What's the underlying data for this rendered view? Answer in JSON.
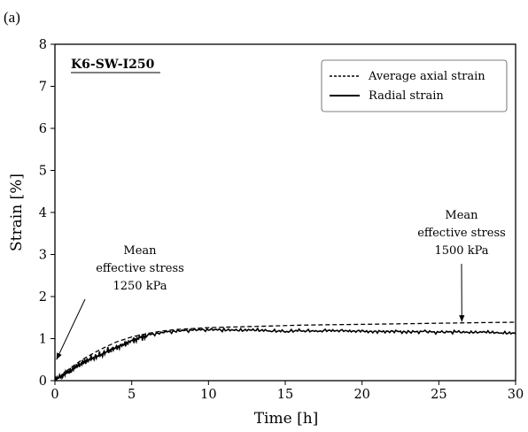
{
  "panel_label": "(a)",
  "chart_data": {
    "type": "line",
    "specimen_label": "K6-SW-I250",
    "xlabel": "Time [h]",
    "ylabel": "Strain [%]",
    "xlim": [
      0,
      30
    ],
    "ylim": [
      0,
      8
    ],
    "x_ticks": [
      0,
      5,
      10,
      15,
      20,
      25,
      30
    ],
    "y_ticks": [
      0,
      1,
      2,
      3,
      4,
      5,
      6,
      7,
      8
    ],
    "grid": false,
    "legend_position": "top-right",
    "series": [
      {
        "name": "Average axial strain",
        "style": "dashed",
        "color": "#000000",
        "x": [
          0,
          0.5,
          1,
          1.5,
          2,
          3,
          4,
          5,
          6,
          7,
          8,
          9,
          10,
          12,
          14,
          16,
          18,
          20,
          22,
          24,
          26,
          28,
          30
        ],
        "y": [
          0.0,
          0.15,
          0.3,
          0.43,
          0.55,
          0.75,
          0.92,
          1.04,
          1.12,
          1.18,
          1.22,
          1.24,
          1.26,
          1.28,
          1.3,
          1.32,
          1.33,
          1.34,
          1.35,
          1.36,
          1.37,
          1.38,
          1.39
        ]
      },
      {
        "name": "Radial strain",
        "style": "solid",
        "color": "#000000",
        "x": [
          0,
          0.5,
          1,
          1.5,
          2,
          2.5,
          3,
          3.5,
          4,
          4.5,
          5,
          5.5,
          6,
          7,
          8,
          9,
          10,
          11,
          12,
          13,
          14,
          15,
          16,
          17,
          18,
          19,
          20,
          21,
          22,
          23,
          24,
          25,
          26,
          27,
          28,
          29,
          30
        ],
        "y": [
          0.0,
          0.12,
          0.22,
          0.35,
          0.45,
          0.55,
          0.62,
          0.72,
          0.8,
          0.88,
          0.96,
          1.02,
          1.08,
          1.15,
          1.18,
          1.2,
          1.21,
          1.2,
          1.19,
          1.2,
          1.18,
          1.17,
          1.19,
          1.18,
          1.2,
          1.19,
          1.18,
          1.17,
          1.18,
          1.16,
          1.17,
          1.15,
          1.16,
          1.14,
          1.15,
          1.13,
          1.12
        ]
      }
    ],
    "annotations": [
      {
        "lines": [
          "Mean",
          "effective stress",
          "1250 kPa"
        ],
        "points_to": {
          "x": 0.1,
          "y": 0.5
        }
      },
      {
        "lines": [
          "Mean",
          "effective stress",
          "1500 kPa"
        ],
        "points_to": {
          "x": 26.5,
          "y": 1.4
        }
      }
    ]
  }
}
